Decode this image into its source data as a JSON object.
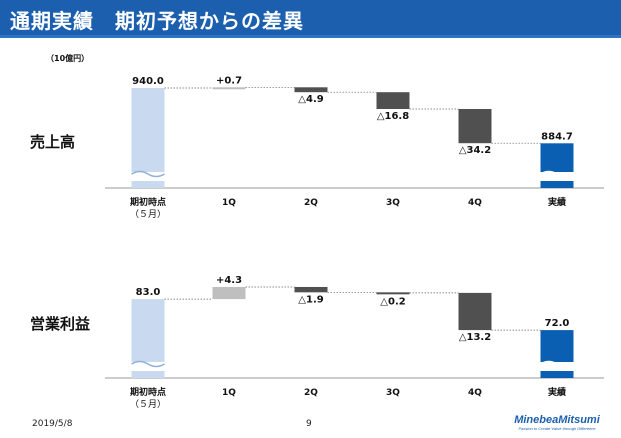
{
  "header": {
    "title": "通期実績　期初予想からの差異"
  },
  "unit_label": "（10億円）",
  "colors": {
    "header": "#1b5fae",
    "initial_bar": "#c9d9ef",
    "result_bar": "#0b5fb3",
    "decrease_bar": "#505050",
    "increase_bar": "#bfbfbf"
  },
  "footer": {
    "date": "2019/5/8",
    "page": "9",
    "logo": "MinebeaMitsumi",
    "tagline": "Passion to Create Value through Difference"
  },
  "chart_data": [
    {
      "type": "waterfall",
      "title": "売上高",
      "categories": [
        "期初時点",
        "1Q",
        "2Q",
        "3Q",
        "4Q",
        "実績"
      ],
      "category_sublabels": [
        "（５月）",
        "",
        "",
        "",
        "",
        ""
      ],
      "kinds": [
        "total",
        "delta",
        "delta",
        "delta",
        "delta",
        "total"
      ],
      "values": [
        940.0,
        0.7,
        -4.9,
        -16.8,
        -34.2,
        884.7
      ],
      "labels": [
        "940.0",
        "+0.7",
        "△4.9",
        "△16.8",
        "△34.2",
        "884.7"
      ],
      "axis_break": true,
      "ylim": [
        840,
        945
      ]
    },
    {
      "type": "waterfall",
      "title": "営業利益",
      "categories": [
        "期初時点",
        "1Q",
        "2Q",
        "3Q",
        "4Q",
        "実績"
      ],
      "category_sublabels": [
        "（５月）",
        "",
        "",
        "",
        "",
        ""
      ],
      "kinds": [
        "total",
        "delta",
        "delta",
        "delta",
        "delta",
        "total"
      ],
      "values": [
        83.0,
        4.3,
        -1.9,
        -0.2,
        -13.2,
        72.0
      ],
      "labels": [
        "83.0",
        "+4.3",
        "△1.9",
        "△0.2",
        "△13.2",
        "72.0"
      ],
      "axis_break": true,
      "ylim": [
        55,
        88
      ]
    }
  ]
}
